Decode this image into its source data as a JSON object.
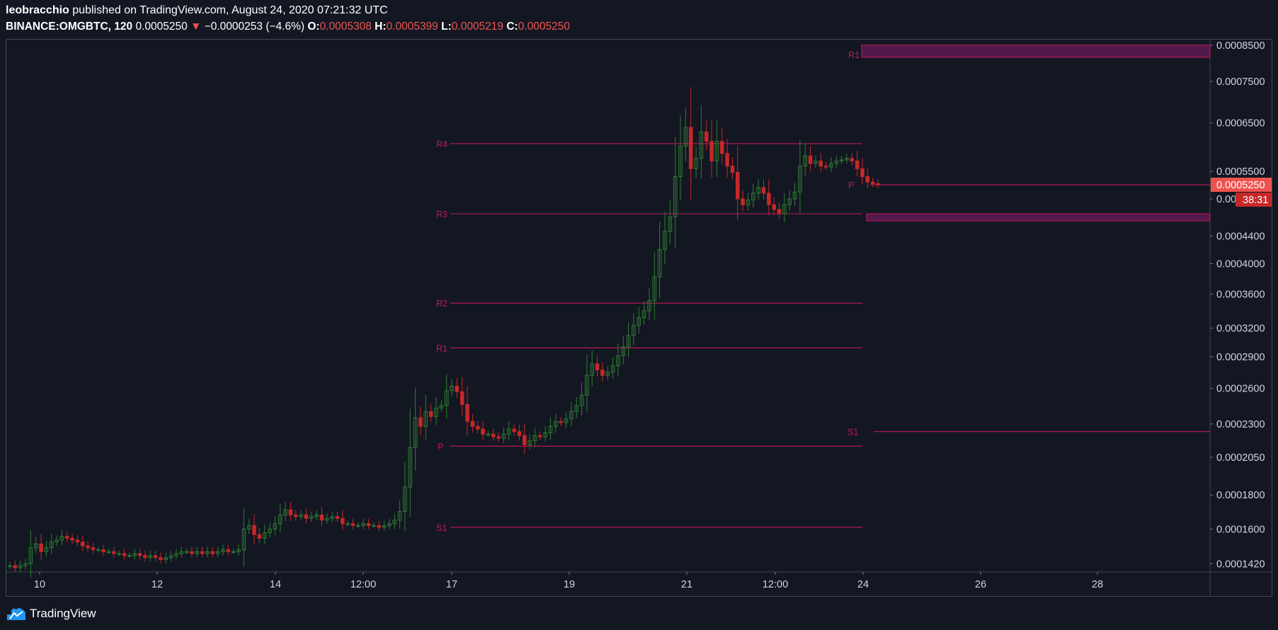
{
  "header": {
    "author": "leobracchio",
    "published": "published on TradingView.com, August 24, 2020 07:21:32 UTC",
    "symbol": "BINANCE:OMGBTC, 120",
    "last": "0.0005250",
    "change_arrow": "▼",
    "change": "−0.0000253 (−4.6%)",
    "o_label": "O:",
    "o": "0.0005308",
    "h_label": "H:",
    "h": "0.0005399",
    "l_label": "L:",
    "l": "0.0005219",
    "c_label": "C:",
    "c": "0.0005250"
  },
  "footer": {
    "brand": "TradingView"
  },
  "colors": {
    "background": "#131722",
    "up": "#26a69a",
    "up_candle": "#2e7d32",
    "down": "#ef5350",
    "down_candle": "#c62828",
    "level": "#c2185b",
    "zone_fill": "#6a1b59",
    "zone_stroke": "#ad1457",
    "axis_text": "#d1d4dc",
    "price_tag": "#ef5350"
  },
  "chart_data": {
    "type": "candlestick",
    "y_scale": "log",
    "ylim": [
      0.000139,
      0.00086
    ],
    "price_axis_labels": [
      "0.0008500",
      "0.0007500",
      "0.0006500",
      "0.0005500",
      "0.0005000",
      "0.0004400",
      "0.0004000",
      "0.0003600",
      "0.0003200",
      "0.0002900",
      "0.0002600",
      "0.0002300",
      "0.0002050",
      "0.0001800",
      "0.0001600",
      "0.0001420"
    ],
    "time_axis_labels": [
      "10",
      "12",
      "14",
      "12:00",
      "17",
      "19",
      "21",
      "12:00",
      "24",
      "26",
      "28"
    ],
    "current_price_tag": "0.0005250",
    "countdown_tag": "38:31",
    "levels": [
      {
        "label": "R4",
        "value": 0.000605
      },
      {
        "label": "R3",
        "value": 0.000475
      },
      {
        "label": "R2",
        "value": 0.000349
      },
      {
        "label": "R1",
        "value": 0.000299
      },
      {
        "label": "P",
        "value": 0.000213
      },
      {
        "label": "S1",
        "value": 0.000161
      },
      {
        "label": "S1",
        "value": 0.000224
      },
      {
        "label": "R1",
        "value": 0.00085
      },
      {
        "label": "P",
        "value": 0.000525
      }
    ],
    "zones": [
      {
        "label": "R1",
        "top": 0.00085,
        "bottom": 0.000815
      },
      {
        "label": "",
        "top": 0.000475,
        "bottom": 0.000465
      }
    ],
    "series_close": [
      0.000141,
      0.00014,
      0.000141,
      0.000142,
      0.00015,
      0.000152,
      0.000148,
      0.00015,
      0.000153,
      0.000154,
      0.000156,
      0.000155,
      0.000154,
      0.000153,
      0.000151,
      0.00015,
      0.000149,
      0.000149,
      0.000148,
      0.000148,
      0.000147,
      0.000147,
      0.000146,
      0.000146,
      0.000147,
      0.000146,
      0.000145,
      0.000146,
      0.000145,
      0.000144,
      0.000145,
      0.000146,
      0.000147,
      0.000148,
      0.000148,
      0.000147,
      0.000148,
      0.000147,
      0.000148,
      0.000147,
      0.000148,
      0.000149,
      0.000148,
      0.000148,
      0.000149,
      0.00016,
      0.000162,
      0.000157,
      0.000155,
      0.000158,
      0.00016,
      0.000163,
      0.000168,
      0.000171,
      0.000168,
      0.000167,
      0.000168,
      0.000166,
      0.000167,
      0.000168,
      0.000165,
      0.000166,
      0.000167,
      0.000166,
      0.000163,
      0.000163,
      0.000162,
      0.000162,
      0.000163,
      0.000162,
      0.000162,
      0.000161,
      0.000162,
      0.000163,
      0.000165,
      0.00017,
      0.000185,
      0.000212,
      0.000235,
      0.000228,
      0.00024,
      0.000236,
      0.000243,
      0.000245,
      0.000258,
      0.000262,
      0.000257,
      0.000246,
      0.000232,
      0.000228,
      0.000226,
      0.000222,
      0.000222,
      0.00022,
      0.000219,
      0.000222,
      0.000226,
      0.000224,
      0.000221,
      0.000214,
      0.000217,
      0.000221,
      0.00022,
      0.000223,
      0.000228,
      0.000232,
      0.000231,
      0.000234,
      0.00024,
      0.000245,
      0.000254,
      0.000272,
      0.000283,
      0.000277,
      0.000272,
      0.000275,
      0.000281,
      0.000291,
      0.0003,
      0.000312,
      0.000323,
      0.000332,
      0.00034,
      0.000352,
      0.000382,
      0.00042,
      0.000447,
      0.00047,
      0.00054,
      0.0006,
      0.00064,
      0.000555,
      0.000575,
      0.00063,
      0.00061,
      0.00057,
      0.00061,
      0.000585,
      0.00056,
      0.000548,
      0.0005,
      0.00049,
      0.000498,
      0.00051,
      0.00052,
      0.00051,
      0.00049,
      0.000482,
      0.000475,
      0.00049,
      0.0005,
      0.000512,
      0.00056,
      0.00058,
      0.000565,
      0.00057,
      0.00056,
      0.000558,
      0.000565,
      0.00057,
      0.000572,
      0.000575,
      0.00057,
      0.000555,
      0.00054,
      0.00053,
      0.000527,
      0.000525
    ]
  }
}
